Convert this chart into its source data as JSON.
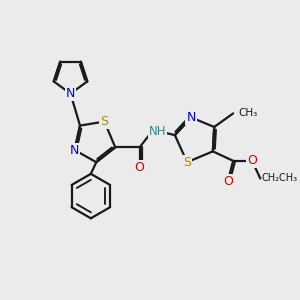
{
  "background_color": "#ebebeb",
  "bond_color": "#1a1a1a",
  "bond_width": 1.6,
  "atom_colors": {
    "N": "#0000ee",
    "S": "#b8860b",
    "O": "#dd0000",
    "NH": "#2e8b8b",
    "C": "#1a1a1a"
  },
  "font_size": 8.5,
  "fig_size": [
    3.0,
    3.0
  ],
  "dpi": 100,
  "xlim": [
    0,
    10
  ],
  "ylim": [
    0,
    10
  ]
}
